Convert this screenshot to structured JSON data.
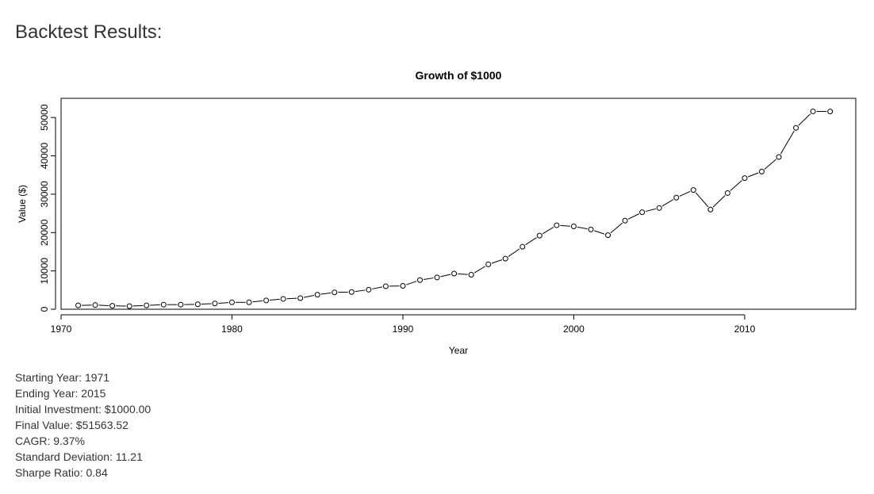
{
  "page": {
    "title": "Backtest Results:"
  },
  "chart_data": {
    "type": "line",
    "title": "Growth of $1000",
    "xlabel": "Year",
    "ylabel": "Value ($)",
    "xlim": [
      1970,
      2016.5
    ],
    "ylim": [
      0,
      55000
    ],
    "xticks": [
      1970,
      1980,
      1990,
      2000,
      2010
    ],
    "yticks": [
      0,
      10000,
      20000,
      30000,
      40000,
      50000
    ],
    "grid": false,
    "markers": "open-circle",
    "series": [
      {
        "x": [
          1971,
          1972,
          1973,
          1974,
          1975,
          1976,
          1977,
          1978,
          1979,
          1980,
          1981,
          1982,
          1983,
          1984,
          1985,
          1986,
          1987,
          1988,
          1989,
          1990,
          1991,
          1992,
          1993,
          1994,
          1995,
          1996,
          1997,
          1998,
          1999,
          2000,
          2001,
          2002,
          2003,
          2004,
          2005,
          2006,
          2007,
          2008,
          2009,
          2010,
          2011,
          2012,
          2013,
          2014,
          2015
        ],
        "values": [
          1000,
          1100,
          900,
          800,
          1000,
          1200,
          1200,
          1300,
          1500,
          1800,
          1800,
          2300,
          2700,
          2900,
          3800,
          4400,
          4500,
          5100,
          6000,
          6100,
          7600,
          8300,
          9300,
          9000,
          11700,
          13200,
          16300,
          19200,
          21900,
          21600,
          20800,
          19300,
          23100,
          25300,
          26400,
          29100,
          31100,
          26000,
          30300,
          34200,
          35900,
          39700,
          47300,
          51600,
          51564
        ]
      }
    ]
  },
  "stats": {
    "starting_year": "Starting Year: 1971",
    "ending_year": "Ending Year: 2015",
    "initial_investment": "Initial Investment: $1000.00",
    "final_value": "Final Value: $51563.52",
    "cagr": "CAGR: 9.37%",
    "std_dev": "Standard Deviation: 11.21",
    "sharpe": "Sharpe Ratio: 0.84"
  }
}
